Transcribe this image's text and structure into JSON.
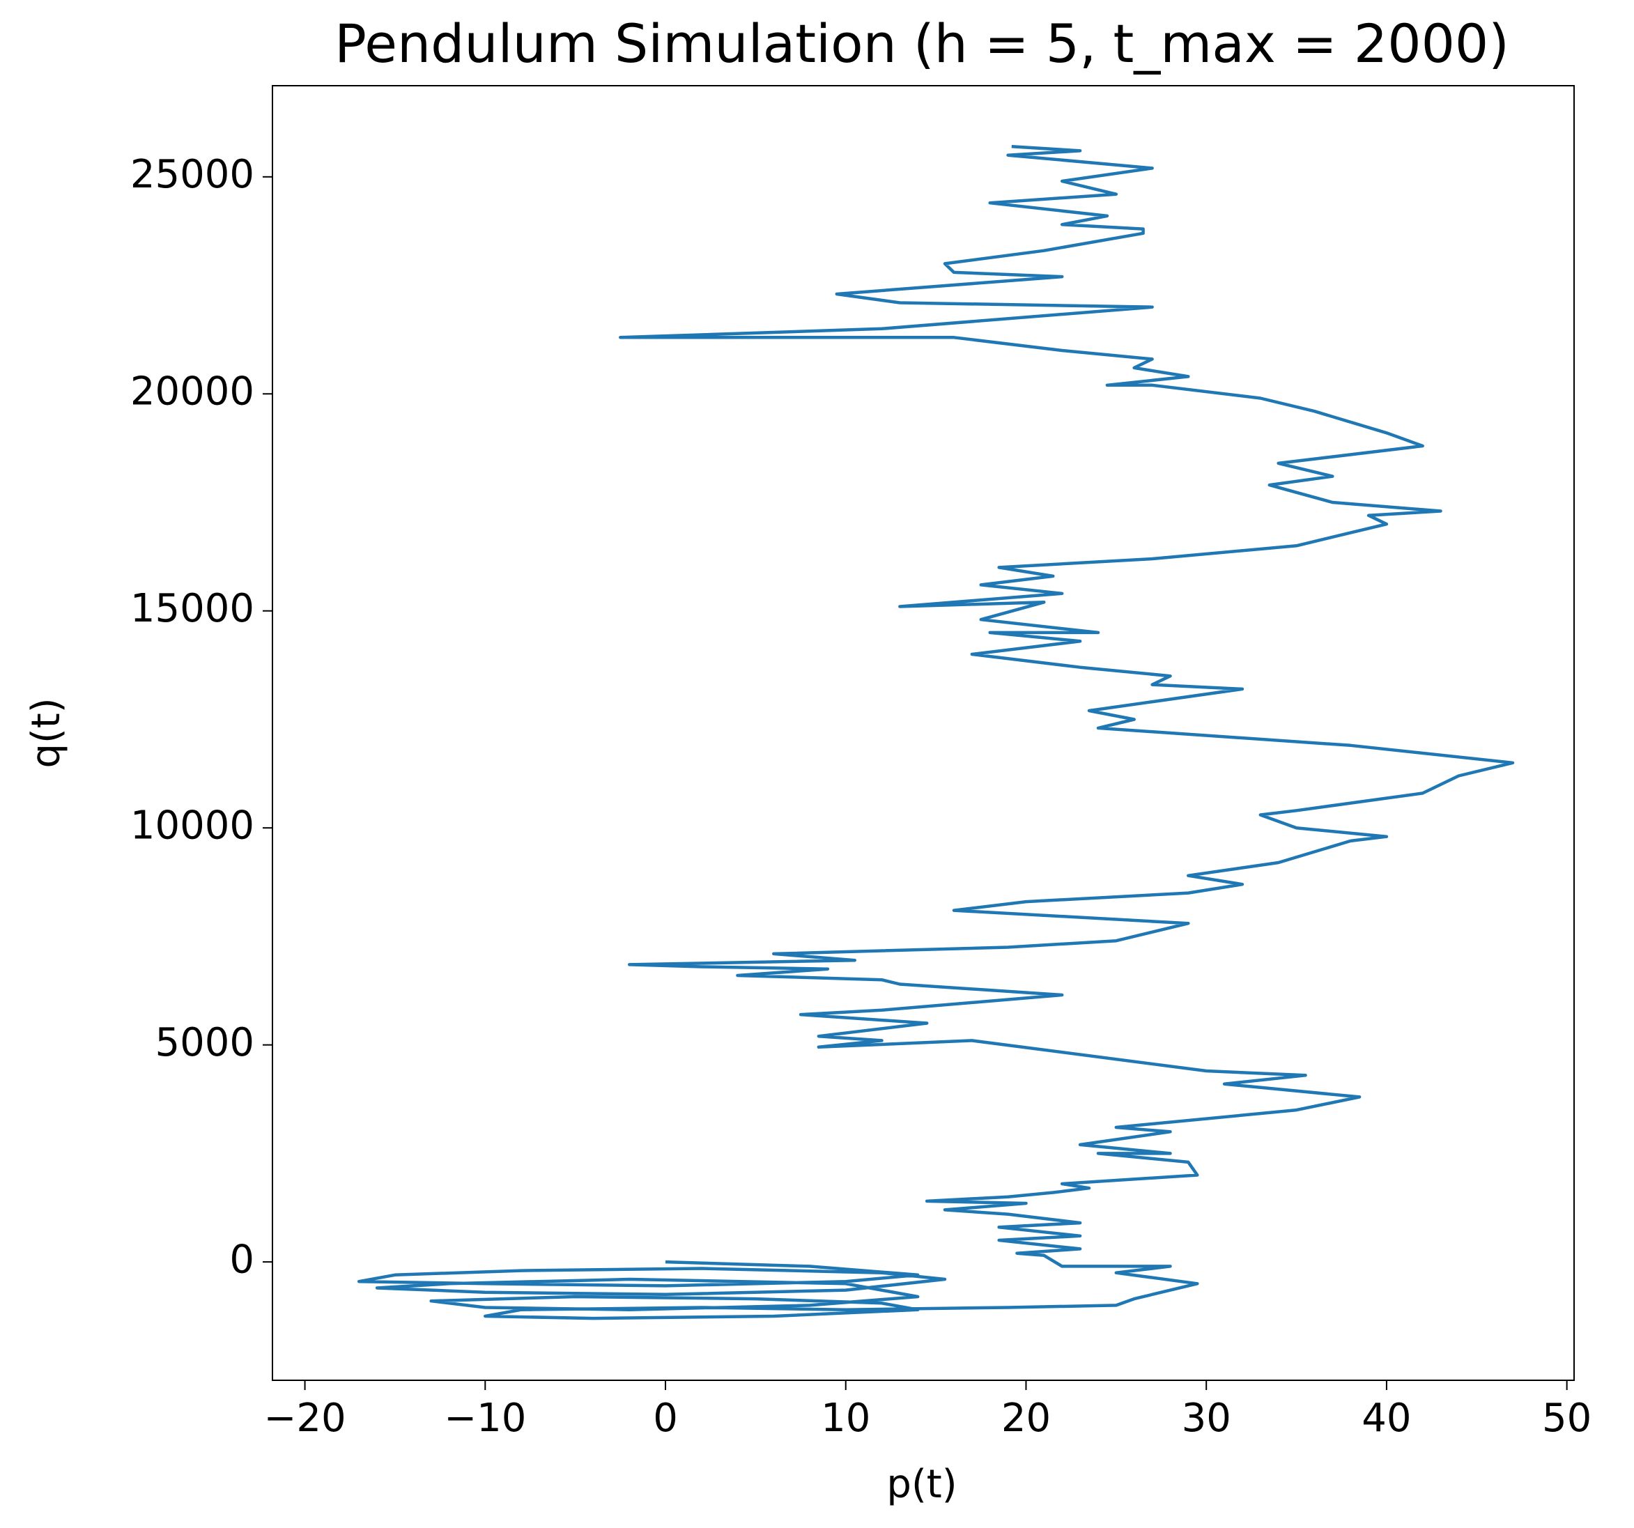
{
  "chart_data": {
    "type": "line",
    "title": "Pendulum Simulation (h = 5, t_max = 2000)",
    "x_label": "p(t)",
    "y_label": "q(t)",
    "color": "#1f77b4",
    "x": [
      0,
      8,
      14,
      10,
      0,
      -10,
      -17,
      -15,
      -8,
      2,
      12,
      15.5,
      10,
      0,
      -10,
      -16,
      -12,
      -2,
      10,
      14,
      8,
      -2,
      -10,
      -13,
      -5,
      5,
      12,
      14,
      6,
      -4,
      -10,
      -8,
      2,
      10,
      19,
      25,
      26,
      29.5,
      25,
      28,
      22,
      21,
      19.5,
      23,
      18.5,
      23,
      18.5,
      23,
      19,
      15.5,
      20,
      14.5,
      19,
      21.5,
      23.5,
      22,
      29.5,
      29,
      24,
      28,
      23,
      28,
      25,
      35,
      38.5,
      31,
      35.5,
      30,
      17,
      8.5,
      12,
      8.5,
      14.5,
      7.5,
      12,
      22,
      13,
      12,
      4,
      9,
      2,
      -2,
      10.5,
      6,
      19,
      25,
      29,
      16,
      20,
      29,
      32,
      29,
      34,
      38,
      40,
      35,
      33,
      35,
      42,
      44,
      47,
      38,
      24,
      26,
      23.5,
      32,
      27,
      28,
      23,
      17,
      23,
      18,
      24,
      17.5,
      21,
      13,
      22,
      17.5,
      21.5,
      18.5,
      27,
      35,
      38,
      40,
      39,
      43,
      37,
      33.5,
      37,
      34,
      42,
      40,
      36,
      33,
      27,
      24.5,
      29,
      26,
      27,
      22,
      16,
      -2.5,
      12,
      27,
      13,
      9.5,
      22,
      16,
      15.5,
      21,
      26.5,
      26.5,
      22,
      24.5,
      18,
      25,
      22,
      27,
      19,
      23,
      19.2
    ],
    "values": [
      0,
      -100,
      -300,
      -450,
      -550,
      -500,
      -450,
      -300,
      -200,
      -150,
      -250,
      -400,
      -650,
      -750,
      -700,
      -600,
      -500,
      -400,
      -500,
      -800,
      -1000,
      -1100,
      -1050,
      -900,
      -800,
      -850,
      -950,
      -1100,
      -1250,
      -1300,
      -1250,
      -1100,
      -1050,
      -1100,
      -1050,
      -1000,
      -850,
      -500,
      -250,
      -100,
      -100,
      150,
      200,
      300,
      500,
      600,
      800,
      900,
      1100,
      1200,
      1350,
      1400,
      1500,
      1600,
      1700,
      1800,
      2000,
      2300,
      2500,
      2500,
      2700,
      3000,
      3100,
      3500,
      3800,
      4100,
      4300,
      4400,
      5100,
      4950,
      5100,
      5200,
      5500,
      5700,
      5800,
      6150,
      6400,
      6500,
      6600,
      6750,
      6800,
      6850,
      6950,
      7100,
      7250,
      7400,
      7800,
      8100,
      8300,
      8500,
      8700,
      8900,
      9200,
      9700,
      9800,
      10000,
      10300,
      10400,
      10800,
      11200,
      11500,
      11900,
      12300,
      12500,
      12700,
      13200,
      13300,
      13500,
      13700,
      14000,
      14300,
      14500,
      14500,
      14800,
      15200,
      15100,
      15400,
      15600,
      15800,
      16000,
      16200,
      16500,
      16800,
      17000,
      17200,
      17300,
      17500,
      17900,
      18100,
      18400,
      18800,
      19100,
      19600,
      19900,
      20200,
      20200,
      20400,
      20600,
      20800,
      21000,
      21300,
      21300,
      21500,
      22000,
      22100,
      22300,
      22700,
      22800,
      23000,
      23300,
      23700,
      23800,
      23900,
      24100,
      24400,
      24600,
      24900,
      25200,
      25500,
      25600,
      25700
    ],
    "xlim": [
      -21.8,
      50.4
    ],
    "ylim": [
      -2727,
      27100
    ],
    "xticks": [
      {
        "value": -20,
        "label": "−20"
      },
      {
        "value": -10,
        "label": "−10"
      },
      0,
      10,
      20,
      30,
      40,
      50
    ],
    "yticks": [
      0,
      5000,
      10000,
      15000,
      20000,
      25000
    ]
  }
}
